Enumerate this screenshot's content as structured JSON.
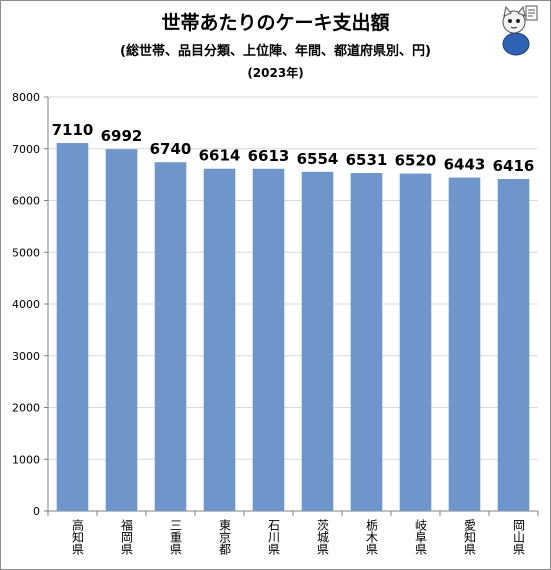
{
  "title": "世帯あたりのケーキ支出額",
  "subtitle": "(総世帯、品目分類、上位陣、年間、都道府県別、円)",
  "year_label": "(2023年)",
  "colors": {
    "bar": "#6f96cb",
    "grid": "#d9d9d9",
    "axis": "#808080"
  },
  "mascot_icon": "cat-mascot-icon",
  "chart_data": {
    "type": "bar",
    "categories": [
      "高知県",
      "福岡県",
      "三重県",
      "東京都",
      "石川県",
      "茨城県",
      "栃木県",
      "岐阜県",
      "愛知県",
      "岡山県"
    ],
    "values": [
      7110,
      6992,
      6740,
      6614,
      6613,
      6554,
      6531,
      6520,
      6443,
      6416
    ],
    "ylim": [
      0,
      8000
    ],
    "yticks": [
      0,
      1000,
      2000,
      3000,
      4000,
      5000,
      6000,
      7000,
      8000
    ],
    "grid": true,
    "legend": "none"
  }
}
